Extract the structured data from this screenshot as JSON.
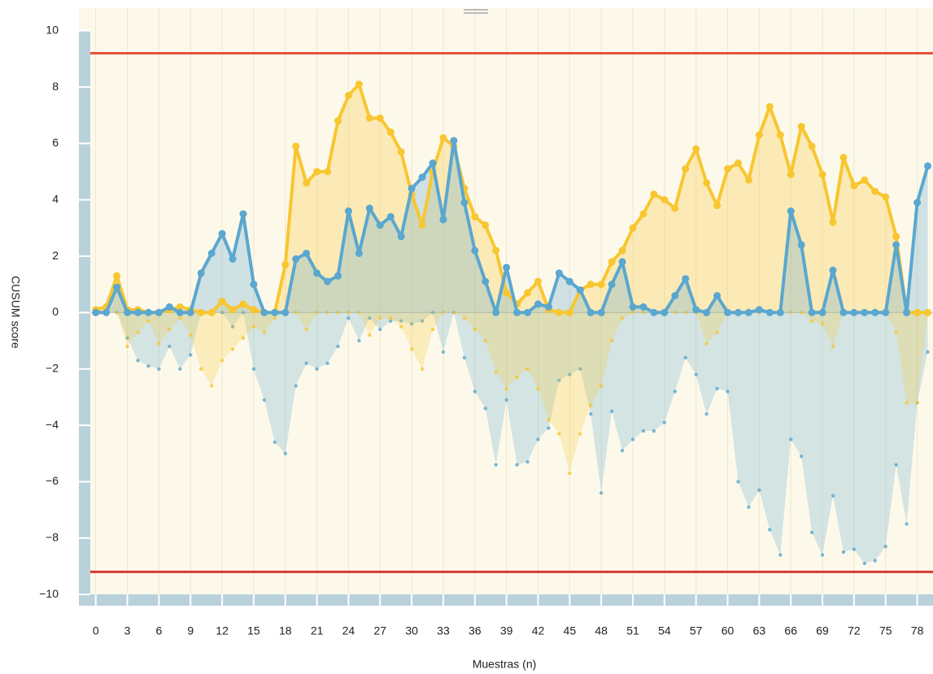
{
  "chart_data": {
    "type": "cusum",
    "x_label": "Muestras (n)",
    "y_label": "CUSUM score",
    "x": [
      0,
      1,
      2,
      3,
      4,
      5,
      6,
      7,
      8,
      9,
      10,
      11,
      12,
      13,
      14,
      15,
      16,
      17,
      18,
      19,
      20,
      21,
      22,
      23,
      24,
      25,
      26,
      27,
      28,
      29,
      30,
      31,
      32,
      33,
      34,
      35,
      36,
      37,
      38,
      39,
      40,
      41,
      42,
      43,
      44,
      45,
      46,
      47,
      48,
      49,
      50,
      51,
      52,
      53,
      54,
      55,
      56,
      57,
      58,
      59,
      60,
      61,
      62,
      63,
      64,
      65,
      66,
      67,
      68,
      69,
      70,
      71,
      72,
      73,
      74,
      75,
      76,
      77,
      78,
      79
    ],
    "series": [
      {
        "color": "#5aa7cf",
        "style": "area",
        "values": [
          0,
          0,
          0,
          -0.9,
          -1.7,
          -1.9,
          -2.0,
          -1.2,
          -2.0,
          -1.5,
          0,
          0,
          0,
          -0.5,
          0,
          -2.0,
          -3.1,
          -4.6,
          -5.0,
          -2.6,
          -1.8,
          -2.0,
          -1.8,
          -1.2,
          -0.2,
          -1.0,
          -0.2,
          -0.6,
          -0.3,
          -0.3,
          -0.4,
          -0.3,
          0,
          -1.4,
          0,
          -1.6,
          -2.8,
          -3.4,
          -5.4,
          -3.1,
          -5.4,
          -5.3,
          -4.5,
          -4.1,
          -2.4,
          -2.2,
          -2.0,
          -3.6,
          -6.4,
          -3.5,
          -4.9,
          -4.5,
          -4.2,
          -4.2,
          -3.9,
          -2.8,
          -1.6,
          -2.2,
          -3.6,
          -2.7,
          -2.8,
          -6.0,
          -6.9,
          -6.3,
          -7.7,
          -8.6,
          -4.5,
          -5.1,
          -7.8,
          -8.6,
          -6.5,
          -8.5,
          -8.4,
          -8.9,
          -8.8,
          -8.3,
          -5.4,
          -7.5,
          -3.2,
          -1.4
        ]
      },
      {
        "color": "#f8c630",
        "style": "area",
        "values": [
          0,
          0,
          0,
          -1.2,
          -0.7,
          -0.3,
          -1.1,
          -0.6,
          -0.2,
          -0.8,
          -2.0,
          -2.6,
          -1.7,
          -1.3,
          -0.9,
          -0.5,
          -0.7,
          -0.2,
          0,
          0,
          -0.6,
          0,
          0,
          0,
          0,
          0,
          -0.8,
          -0.2,
          -0.2,
          -0.5,
          -1.3,
          -2.0,
          -0.6,
          0,
          0,
          -0.2,
          -0.6,
          -1.0,
          -2.1,
          -2.7,
          -2.3,
          -2.0,
          -2.7,
          -3.8,
          -4.3,
          -5.7,
          -4.3,
          -3.3,
          -2.6,
          -1.0,
          -0.2,
          0,
          0,
          0,
          0,
          0,
          0,
          0,
          -1.1,
          -0.7,
          0,
          0,
          0,
          0,
          0,
          0,
          0,
          0,
          -0.3,
          -0.4,
          -1.2,
          0,
          0,
          0,
          0,
          0,
          -0.7,
          -3.2,
          -3.2,
          0
        ]
      },
      {
        "color": "#f8c630",
        "style": "line",
        "values": [
          0.1,
          0.2,
          1.3,
          0.1,
          0.1,
          0,
          0,
          0.1,
          0.2,
          0.1,
          0,
          0,
          0.4,
          0.1,
          0.3,
          0.1,
          0,
          0,
          1.7,
          5.9,
          4.6,
          5.0,
          5.0,
          6.8,
          7.7,
          8.1,
          6.9,
          6.9,
          6.4,
          5.7,
          4.2,
          3.1,
          5.0,
          6.2,
          5.9,
          4.4,
          3.4,
          3.1,
          2.2,
          0.7,
          0.3,
          0.7,
          1.1,
          0.1,
          0,
          0,
          0.8,
          1.0,
          1.0,
          1.8,
          2.2,
          3.0,
          3.5,
          4.2,
          4.0,
          3.7,
          5.1,
          5.8,
          4.6,
          3.8,
          5.1,
          5.3,
          4.7,
          6.3,
          7.3,
          6.3,
          4.9,
          6.6,
          5.9,
          4.9,
          3.2,
          5.5,
          4.5,
          4.7,
          4.3,
          4.1,
          2.7,
          0,
          0,
          0
        ]
      },
      {
        "color": "#5aa7cf",
        "style": "line",
        "values": [
          0,
          0,
          0.9,
          0,
          0,
          0,
          0,
          0.2,
          0,
          0,
          1.4,
          2.1,
          2.8,
          1.9,
          3.5,
          1.0,
          0,
          0,
          0,
          1.9,
          2.1,
          1.4,
          1.1,
          1.3,
          3.6,
          2.1,
          3.7,
          3.1,
          3.4,
          2.7,
          4.4,
          4.8,
          5.3,
          3.3,
          6.1,
          3.9,
          2.2,
          1.1,
          0,
          1.6,
          0,
          0,
          0.3,
          0.2,
          1.4,
          1.1,
          0.8,
          0,
          0,
          1.0,
          1.8,
          0.2,
          0.2,
          0,
          0,
          0.6,
          1.2,
          0.1,
          0,
          0.6,
          0,
          0,
          0,
          0.1,
          0,
          0,
          3.6,
          2.4,
          0,
          0,
          1.5,
          0,
          0,
          0,
          0,
          0,
          2.4,
          0,
          3.9,
          5.2
        ]
      }
    ],
    "h_lines": [
      {
        "value": 9.2,
        "color": "#e8503a"
      },
      {
        "value": -9.2,
        "color": "#d63a35"
      }
    ],
    "xlim": [
      -1.6,
      79.5
    ],
    "ylim": [
      -10.4,
      10.8
    ],
    "xticks": [
      0,
      3,
      6,
      9,
      12,
      15,
      18,
      21,
      24,
      27,
      30,
      33,
      36,
      39,
      42,
      45,
      48,
      51,
      54,
      57,
      60,
      63,
      66,
      69,
      72,
      75,
      78
    ],
    "yticks": [
      {
        "value": -10,
        "label": "−10"
      },
      {
        "value": -8,
        "label": "−8"
      },
      {
        "value": -6,
        "label": "−6"
      },
      {
        "value": -4,
        "label": "−4"
      },
      {
        "value": -2,
        "label": "−2"
      },
      0,
      2,
      4,
      6,
      8,
      10
    ],
    "grid": true
  }
}
